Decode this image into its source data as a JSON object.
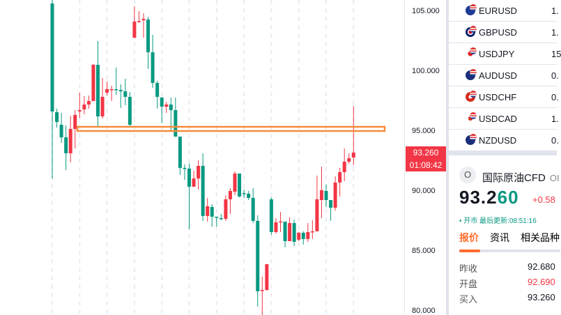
{
  "chart_data": {
    "type": "candlestick",
    "colors": {
      "up": "#f23645",
      "down": "#089981",
      "zone": "#f68c3a",
      "grid": "#e9ebf0"
    },
    "ylim": [
      80,
      106
    ],
    "y_ticks": [
      "105.000",
      "100.000",
      "95.000",
      "90.000",
      "85.000",
      "80.000"
    ],
    "zone": {
      "from": 95.06,
      "to": 95.41
    },
    "candles": [
      [
        105.7,
        105.99,
        91.1,
        96.69
      ],
      [
        96.63,
        96.92,
        95.35,
        95.81
      ],
      [
        95.58,
        96.57,
        94.07,
        94.53
      ],
      [
        94.53,
        95.52,
        91.8,
        93.2
      ],
      [
        93.2,
        96.34,
        92.44,
        95.23
      ],
      [
        95.23,
        96.8,
        93.6,
        96.4
      ],
      [
        96.69,
        98.26,
        96.16,
        96.8
      ],
      [
        96.86,
        97.97,
        96.45,
        97.27
      ],
      [
        97.27,
        98.02,
        96.92,
        97.56
      ],
      [
        97.56,
        100.64,
        97.56,
        100.58
      ],
      [
        100.58,
        102.56,
        95.41,
        96.28
      ],
      [
        96.28,
        99.48,
        96.1,
        97.91
      ],
      [
        98.26,
        99.19,
        98.02,
        98.55
      ],
      [
        98.55,
        98.84,
        97.56,
        98.55
      ],
      [
        98.55,
        100.35,
        98.08,
        98.49
      ],
      [
        98.49,
        98.95,
        96.98,
        98.37
      ],
      [
        98.37,
        99.42,
        97.21,
        97.91
      ],
      [
        97.91,
        98.31,
        95.47,
        95.58
      ],
      [
        102.85,
        105.47,
        102.79,
        104.19
      ],
      [
        104.19,
        105.06,
        104.07,
        104.24
      ],
      [
        104.3,
        104.88,
        102.85,
        104.42
      ],
      [
        104.36,
        104.59,
        100.23,
        101.63
      ],
      [
        101.63,
        103.08,
        98.66,
        99.07
      ],
      [
        99.07,
        99.24,
        96.92,
        97.91
      ],
      [
        97.85,
        97.91,
        95.7,
        97.09
      ],
      [
        97.09,
        97.5,
        96.57,
        97.27
      ],
      [
        97.27,
        97.85,
        95.12,
        96.8
      ],
      [
        96.8,
        97.85,
        94.59,
        94.59
      ],
      [
        94.59,
        94.59,
        91.4,
        91.98
      ],
      [
        91.98,
        92.27,
        90.99,
        91.96
      ],
      [
        91.92,
        92.33,
        86.86,
        90.41
      ],
      [
        90.41,
        91.74,
        90.41,
        91.1
      ],
      [
        91.1,
        92.62,
        90.17,
        92.15
      ],
      [
        92.15,
        93.2,
        87.56,
        87.97
      ],
      [
        87.97,
        89.48,
        87.5,
        88.78
      ],
      [
        88.72,
        88.95,
        87.09,
        87.91
      ],
      [
        87.91,
        87.91,
        87.09,
        87.89
      ],
      [
        87.79,
        88.14,
        87.62,
        87.77
      ],
      [
        87.73,
        89.71,
        87.56,
        89.36
      ],
      [
        89.36,
        90.29,
        88.14,
        90.06
      ],
      [
        90.0,
        91.69,
        89.71,
        91.51
      ],
      [
        91.51,
        91.51,
        89.53,
        89.59
      ],
      [
        89.88,
        90.17,
        89.48,
        89.86
      ],
      [
        89.83,
        90.06,
        89.3,
        89.48
      ],
      [
        89.48,
        90.29,
        87.38,
        87.56
      ],
      [
        87.56,
        88.02,
        80.41,
        81.69
      ],
      [
        81.74,
        82.91,
        79.71,
        81.8
      ],
      [
        81.8,
        83.95,
        81.74,
        83.95
      ],
      [
        89.36,
        89.53,
        86.4,
        86.63
      ],
      [
        86.63,
        87.79,
        86.51,
        87.44
      ],
      [
        87.5,
        88.31,
        86.63,
        87.52
      ],
      [
        87.5,
        87.5,
        85.35,
        85.87
      ],
      [
        85.87,
        87.85,
        85.87,
        87.38
      ],
      [
        87.38,
        87.67,
        85.47,
        85.81
      ],
      [
        85.99,
        86.63,
        85.87,
        86.57
      ],
      [
        86.57,
        86.69,
        85.58,
        86.05
      ],
      [
        86.05,
        87.38,
        85.81,
        86.63
      ],
      [
        86.63,
        87.62,
        86.05,
        86.69
      ],
      [
        86.69,
        91.34,
        86.69,
        89.36
      ],
      [
        89.3,
        92.09,
        87.79,
        90.12
      ],
      [
        90.06,
        90.58,
        88.72,
        89.3
      ],
      [
        89.3,
        89.3,
        87.56,
        88.66
      ],
      [
        88.66,
        91.28,
        88.43,
        90.76
      ],
      [
        90.76,
        91.98,
        89.59,
        91.63
      ],
      [
        91.63,
        93.6,
        90.87,
        92.5
      ],
      [
        92.5,
        93.2,
        92.33,
        92.79
      ],
      [
        92.85,
        97.15,
        92.21,
        93.26
      ]
    ]
  },
  "price_label": {
    "price": "93.260",
    "countdown": "01:08:42"
  },
  "watchlist": [
    {
      "symbol": "EURUSD",
      "value": "1.",
      "flag": "eu"
    },
    {
      "symbol": "GBPUSD",
      "value": "1.",
      "flag": "gb"
    },
    {
      "symbol": "USDJPY",
      "value": "15",
      "flag": "jp"
    },
    {
      "symbol": "AUDUSD",
      "value": "0.",
      "flag": "au"
    },
    {
      "symbol": "USDCHF",
      "value": "0.",
      "flag": "ch"
    },
    {
      "symbol": "USDCAD",
      "value": "1.",
      "flag": "ca"
    },
    {
      "symbol": "NZDUSD",
      "value": "0.",
      "flag": "nz"
    }
  ],
  "info": {
    "icon_letter": "O",
    "name": "国际原油CFD",
    "code": "OI",
    "price_main": "93.2",
    "price_tail": "60",
    "change": "+0.58",
    "status": "• 开市 最后更新:08:51:16",
    "tabs": [
      "报价",
      "资讯",
      "相关品种"
    ],
    "quotes": [
      {
        "label": "昨收",
        "value": "92.680"
      },
      {
        "label": "开盘",
        "value": "92.690",
        "color": "#f23645"
      },
      {
        "label": "买入",
        "value": "93.260"
      }
    ]
  }
}
